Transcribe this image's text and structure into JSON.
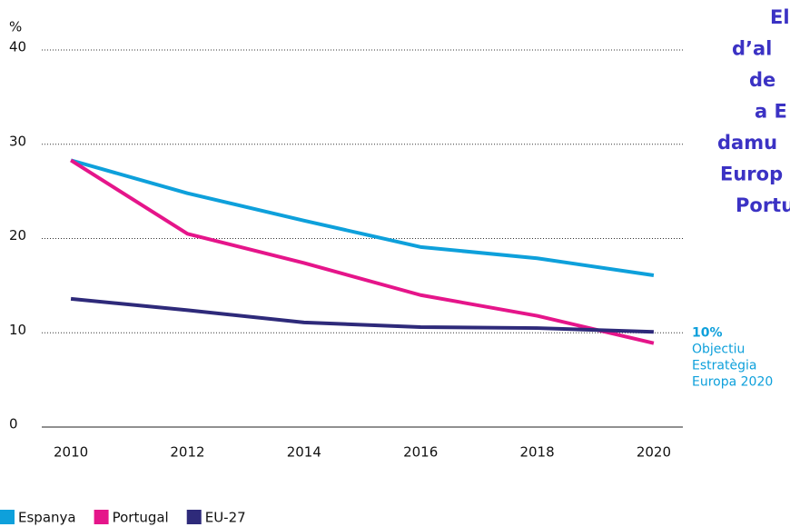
{
  "chart_data": {
    "type": "line",
    "title_lines": [
      "El",
      "d’al",
      "de",
      "a E",
      "damu",
      "Europ",
      "Portu"
    ],
    "y_label": "%",
    "x": [
      2010,
      2012,
      2014,
      2016,
      2018,
      2020
    ],
    "xlim": [
      2009.5,
      2020.5
    ],
    "xticks": [
      2010,
      2012,
      2014,
      2016,
      2018,
      2020
    ],
    "ylim": [
      0,
      40
    ],
    "yticks": [
      0,
      10,
      20,
      30,
      40
    ],
    "grid": true,
    "legend": "bottom-left",
    "series": [
      {
        "name": "Espanya",
        "color": "#0ea0db",
        "values": [
          28.3,
          24.8,
          21.9,
          19.1,
          17.9,
          16.1
        ]
      },
      {
        "name": "Portugal",
        "color": "#e5158a",
        "values": [
          28.3,
          20.5,
          17.4,
          14.0,
          11.8,
          8.9
        ]
      },
      {
        "name": "EU-27",
        "color": "#2e2a7a",
        "values": [
          13.6,
          12.4,
          11.1,
          10.6,
          10.5,
          10.1
        ]
      }
    ],
    "annotation": {
      "value_label": "10%",
      "value": 10,
      "lines": [
        "Objectiu",
        "Estratègia",
        "Europa 2020"
      ]
    }
  }
}
